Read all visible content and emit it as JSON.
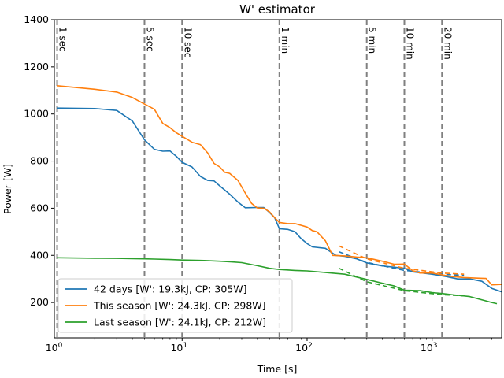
{
  "chart_data": {
    "type": "line",
    "title": "W' estimator",
    "xlabel": "Time [s]",
    "ylabel": "Power [W]",
    "xscale": "log",
    "xlim": [
      0.95,
      3600
    ],
    "ylim": [
      50,
      1400
    ],
    "grid": false,
    "legend_position": "lower-left",
    "yticks": [
      200,
      400,
      600,
      800,
      1000,
      1200,
      1400
    ],
    "xticks": [
      {
        "value": 1,
        "base": "10",
        "exp": "0"
      },
      {
        "value": 10,
        "base": "10",
        "exp": "1"
      },
      {
        "value": 100,
        "base": "10",
        "exp": "2"
      },
      {
        "value": 1000,
        "base": "10",
        "exp": "3"
      }
    ],
    "reference_lines": [
      {
        "x": 1,
        "label": "1 sec"
      },
      {
        "x": 5,
        "label": "5 sec"
      },
      {
        "x": 10,
        "label": "10 sec"
      },
      {
        "x": 60,
        "label": "1 min"
      },
      {
        "x": 300,
        "label": "5 min"
      },
      {
        "x": 600,
        "label": "10 min"
      },
      {
        "x": 1200,
        "label": "20 min"
      }
    ],
    "series": [
      {
        "name": "42 days [W': 19.3kJ, CP: 305W]",
        "color": "#1f77b4",
        "points": [
          [
            1,
            1025
          ],
          [
            2,
            1023
          ],
          [
            3,
            1015
          ],
          [
            4,
            970
          ],
          [
            5,
            890
          ],
          [
            6,
            850
          ],
          [
            7,
            842
          ],
          [
            8,
            843
          ],
          [
            9,
            820
          ],
          [
            10,
            795
          ],
          [
            12,
            775
          ],
          [
            14,
            735
          ],
          [
            16,
            718
          ],
          [
            18,
            716
          ],
          [
            20,
            695
          ],
          [
            24,
            660
          ],
          [
            28,
            626
          ],
          [
            32,
            602
          ],
          [
            40,
            603
          ],
          [
            45,
            603
          ],
          [
            50,
            582
          ],
          [
            55,
            560
          ],
          [
            60,
            513
          ],
          [
            70,
            510
          ],
          [
            80,
            500
          ],
          [
            90,
            470
          ],
          [
            100,
            450
          ],
          [
            110,
            436
          ],
          [
            140,
            430
          ],
          [
            170,
            400
          ],
          [
            200,
            396
          ],
          [
            250,
            385
          ],
          [
            300,
            368
          ],
          [
            400,
            355
          ],
          [
            600,
            345
          ],
          [
            700,
            330
          ],
          [
            1000,
            320
          ],
          [
            1300,
            310
          ],
          [
            1600,
            300
          ],
          [
            2000,
            300
          ],
          [
            2500,
            290
          ],
          [
            3000,
            260
          ],
          [
            3600,
            245
          ]
        ],
        "fit": {
          "color": "#1f77b4",
          "points": [
            [
              180,
              415
            ],
            [
              300,
              370
            ],
            [
              600,
              336
            ],
            [
              1200,
              320
            ],
            [
              1800,
              315
            ]
          ]
        }
      },
      {
        "name": "This season [W': 24.3kJ, CP: 298W]",
        "color": "#ff7f0e",
        "points": [
          [
            1,
            1120
          ],
          [
            2,
            1105
          ],
          [
            3,
            1093
          ],
          [
            4,
            1070
          ],
          [
            5,
            1042
          ],
          [
            6,
            1020
          ],
          [
            7,
            960
          ],
          [
            8,
            942
          ],
          [
            9,
            920
          ],
          [
            10,
            905
          ],
          [
            12,
            880
          ],
          [
            14,
            870
          ],
          [
            16,
            835
          ],
          [
            18,
            790
          ],
          [
            20,
            775
          ],
          [
            22,
            752
          ],
          [
            24,
            748
          ],
          [
            28,
            718
          ],
          [
            32,
            665
          ],
          [
            36,
            620
          ],
          [
            40,
            601
          ],
          [
            45,
            600
          ],
          [
            50,
            585
          ],
          [
            55,
            560
          ],
          [
            60,
            540
          ],
          [
            70,
            535
          ],
          [
            80,
            535
          ],
          [
            100,
            520
          ],
          [
            110,
            505
          ],
          [
            120,
            500
          ],
          [
            140,
            462
          ],
          [
            160,
            400
          ],
          [
            200,
            398
          ],
          [
            250,
            393
          ],
          [
            300,
            390
          ],
          [
            400,
            375
          ],
          [
            500,
            362
          ],
          [
            600,
            363
          ],
          [
            700,
            335
          ],
          [
            800,
            325
          ],
          [
            1000,
            325
          ],
          [
            1400,
            311
          ],
          [
            1800,
            306
          ],
          [
            2400,
            303
          ],
          [
            2700,
            302
          ],
          [
            3000,
            275
          ],
          [
            3600,
            277
          ]
        ],
        "fit": {
          "color": "#ff7f0e",
          "points": [
            [
              180,
              440
            ],
            [
              300,
              385
            ],
            [
              600,
              345
            ],
            [
              1200,
              325
            ],
            [
              1800,
              320
            ]
          ]
        }
      },
      {
        "name": "Last season [W': 24.1kJ, CP: 212W]",
        "color": "#2ca02c",
        "points": [
          [
            1,
            390
          ],
          [
            2,
            388
          ],
          [
            3,
            387
          ],
          [
            4,
            386
          ],
          [
            5,
            385
          ],
          [
            6,
            384
          ],
          [
            8,
            382
          ],
          [
            10,
            380
          ],
          [
            15,
            378
          ],
          [
            20,
            375
          ],
          [
            25,
            372
          ],
          [
            30,
            369
          ],
          [
            40,
            356
          ],
          [
            50,
            345
          ],
          [
            60,
            340
          ],
          [
            80,
            336
          ],
          [
            100,
            334
          ],
          [
            150,
            326
          ],
          [
            200,
            320
          ],
          [
            300,
            298
          ],
          [
            400,
            282
          ],
          [
            500,
            270
          ],
          [
            600,
            252
          ],
          [
            800,
            250
          ],
          [
            1000,
            242
          ],
          [
            1200,
            238
          ],
          [
            1500,
            232
          ],
          [
            2000,
            225
          ],
          [
            3000,
            200
          ],
          [
            3300,
            195
          ]
        ],
        "fit": {
          "color": "#2ca02c",
          "points": [
            [
              180,
              345
            ],
            [
              300,
              288
            ],
            [
              600,
              250
            ],
            [
              1200,
              233
            ],
            [
              1800,
              228
            ]
          ]
        }
      }
    ]
  }
}
